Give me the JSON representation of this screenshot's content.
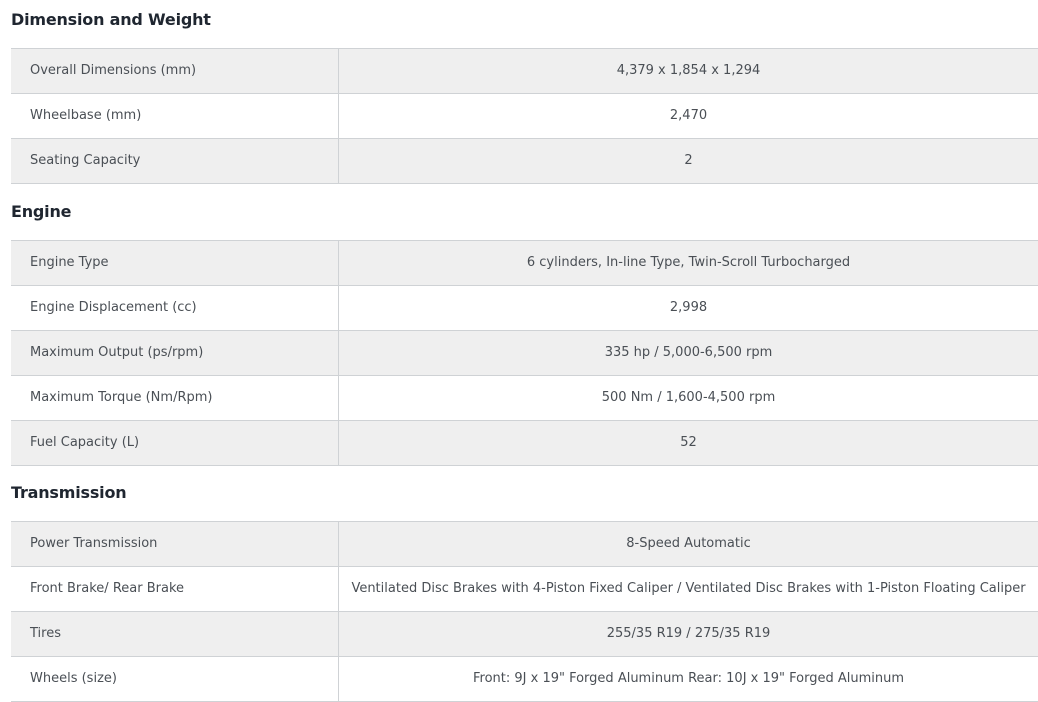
{
  "sections": [
    {
      "title": "Dimension and Weight",
      "rows": [
        {
          "label": "Overall Dimensions (mm)",
          "value": "4,379 x 1,854 x 1,294"
        },
        {
          "label": "Wheelbase (mm)",
          "value": "2,470"
        },
        {
          "label": "Seating Capacity",
          "value": "2"
        }
      ]
    },
    {
      "title": "Engine",
      "rows": [
        {
          "label": "Engine Type",
          "value": "6 cylinders, In-line Type, Twin-Scroll Turbocharged"
        },
        {
          "label": "Engine Displacement (cc)",
          "value": "2,998"
        },
        {
          "label": "Maximum Output (ps/rpm)",
          "value": "335 hp / 5,000-6,500 rpm"
        },
        {
          "label": "Maximum Torque (Nm/Rpm)",
          "value": "500 Nm / 1,600-4,500 rpm"
        },
        {
          "label": "Fuel Capacity (L)",
          "value": "52"
        }
      ]
    },
    {
      "title": "Transmission",
      "rows": [
        {
          "label": "Power Transmission",
          "value": "8-Speed Automatic"
        },
        {
          "label": "Front Brake/ Rear Brake",
          "value": "Ventilated Disc Brakes with 4-Piston Fixed Caliper / Ventilated Disc Brakes with 1-Piston Floating Caliper"
        },
        {
          "label": "Tires",
          "value": "255/35 R19 / 275/35 R19"
        },
        {
          "label": "Wheels (size)",
          "value": "Front: 9J x 19\" Forged Aluminum Rear: 10J x 19\" Forged Aluminum"
        }
      ]
    }
  ]
}
